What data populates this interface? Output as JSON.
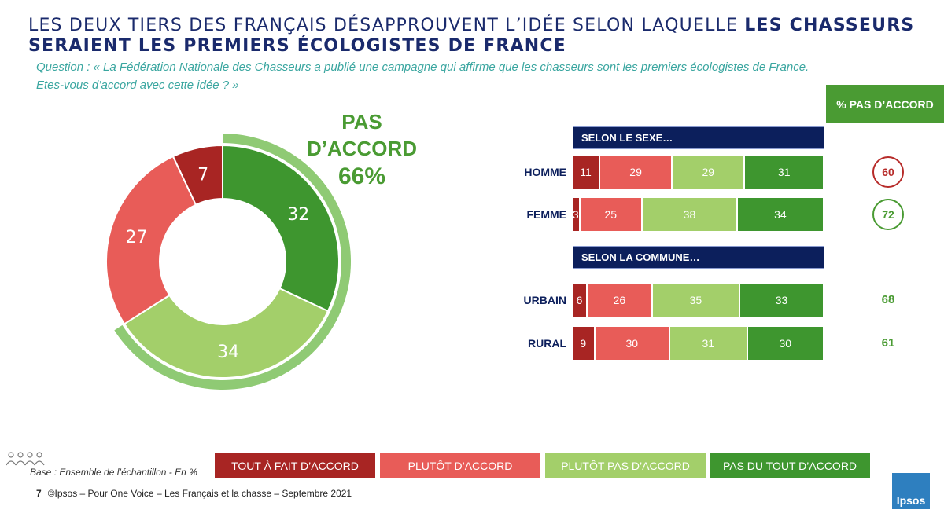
{
  "title": {
    "part1": "LES DEUX TIERS DES FRANÇAIS DÉSAPPROUVENT L’IDÉE SELON LAQUELLE ",
    "part2": "LES CHASSEURS SERAIENT LES PREMIERS ÉCOLOGISTES DE FRANCE"
  },
  "question": {
    "line1": "Question : « La Fédération Nationale des Chasseurs a publié une campagne qui affirme que les chasseurs sont les premiers écologistes de France.",
    "line2": "Etes-vous d’accord avec cette idée ?  »"
  },
  "pct_header": "% PAS D’ACCORD",
  "donut_label": {
    "line1": "PAS",
    "line2": "D’ACCORD",
    "pct": "66%"
  },
  "sections": {
    "sexe": "SELON LE SEXE…",
    "commune": "SELON LA COMMUNE…"
  },
  "colors": {
    "tout_fait": "#a82523",
    "plutot": "#e85c58",
    "plutot_pas": "#a3cf6a",
    "pas_du_tout": "#3e962f",
    "navy": "#0c1f5c",
    "green_text": "#4a9b33",
    "red_text": "#b72c2a"
  },
  "chart_data": [
    {
      "type": "pie",
      "variant": "donut",
      "categories": [
        "Tout à fait d’accord",
        "Plutôt d’accord",
        "Plutôt pas d’accord",
        "Pas du tout d’accord"
      ],
      "values": [
        7,
        27,
        34,
        32
      ],
      "highlight": {
        "label": "Pas d’accord",
        "value": 66
      }
    },
    {
      "type": "bar",
      "stacked": true,
      "orientation": "horizontal",
      "series_names": [
        "Tout à fait d’accord",
        "Plutôt d’accord",
        "Plutôt pas d’accord",
        "Pas du tout d’accord"
      ],
      "rows": [
        {
          "group": "SELON LE SEXE…",
          "label": "HOMME",
          "values": [
            11,
            29,
            29,
            31
          ],
          "pas_accord": 60
        },
        {
          "group": "SELON LE SEXE…",
          "label": "FEMME",
          "values": [
            3,
            25,
            38,
            34
          ],
          "pas_accord": 72
        },
        {
          "group": "SELON LA COMMUNE…",
          "label": "URBAIN",
          "values": [
            6,
            26,
            35,
            33
          ],
          "pas_accord": 68
        },
        {
          "group": "SELON LA COMMUNE…",
          "label": "RURAL",
          "values": [
            9,
            30,
            31,
            30
          ],
          "pas_accord": 61
        }
      ]
    }
  ],
  "legend": [
    "TOUT  À FAIT D’ACCORD",
    "PLUTÔT D’ACCORD",
    "PLUTÔT PAS D’ACCORD",
    "PAS DU TOUT D’ACCORD"
  ],
  "base": "Base : Ensemble de l’échantillon - En %",
  "footer": {
    "page": "7",
    "text": "©Ipsos – Pour One Voice – Les Français et la chasse – Septembre 2021"
  },
  "logo": "Ipsos"
}
